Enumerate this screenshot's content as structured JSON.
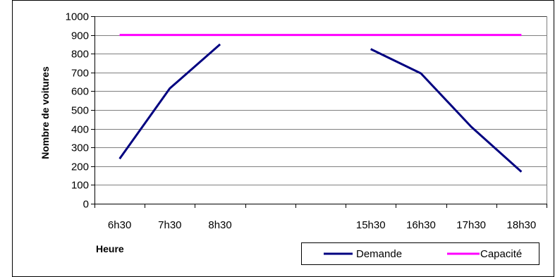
{
  "chart_data": {
    "type": "line",
    "title": "",
    "xlabel": "Heure",
    "ylabel": "Nombre de voitures",
    "ylim": [
      0,
      1000
    ],
    "yticks": [
      0,
      100,
      200,
      300,
      400,
      500,
      600,
      700,
      800,
      900,
      1000
    ],
    "categories": [
      "6h30",
      "7h30",
      "8h30",
      "",
      "",
      "15h30",
      "16h30",
      "17h30",
      "18h30"
    ],
    "grid": true,
    "legend_position": "bottom-right",
    "series": [
      {
        "name": "Demande",
        "color": "#000080",
        "values": [
          240,
          615,
          850,
          null,
          null,
          825,
          695,
          410,
          170
        ]
      },
      {
        "name": "Capacité",
        "color": "#ff00ff",
        "values": [
          900,
          900,
          900,
          900,
          900,
          900,
          900,
          900,
          900
        ]
      }
    ]
  }
}
